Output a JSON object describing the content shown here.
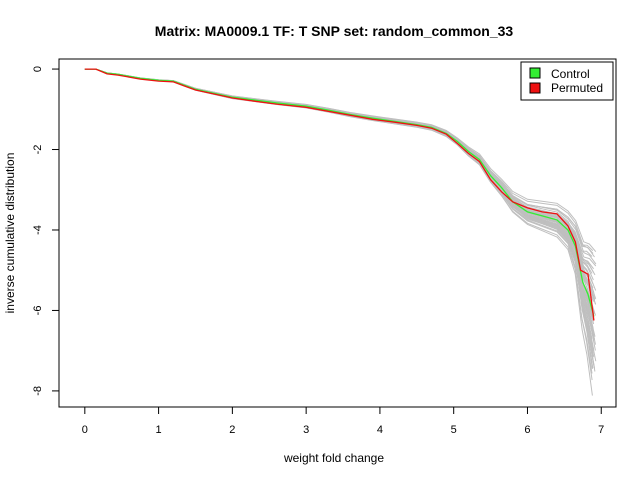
{
  "chart_data": {
    "type": "line",
    "title": "Matrix: MA0009.1 TF: T SNP set: random_common_33",
    "xlabel": "weight fold change",
    "ylabel": "inverse cumulative distribution",
    "xlim": [
      -0.35,
      7.2
    ],
    "ylim": [
      -8.4,
      0.25
    ],
    "x_ticks": [
      0,
      1,
      2,
      3,
      4,
      5,
      6,
      7
    ],
    "y_ticks": [
      0,
      -2,
      -4,
      -6,
      -8
    ],
    "grid": false,
    "legend_position": "top-right",
    "legend": [
      {
        "label": "Control",
        "color": "#33ee33"
      },
      {
        "label": "Permuted",
        "color": "#ee1111"
      }
    ],
    "background_color": "#bfbfbf",
    "series": [
      {
        "name": "Control",
        "color": "#33ee33",
        "x": [
          0.0,
          0.15,
          0.3,
          0.45,
          0.6,
          0.75,
          1.0,
          1.2,
          1.35,
          1.5,
          1.75,
          2.0,
          2.3,
          2.6,
          3.0,
          3.3,
          3.6,
          3.9,
          4.2,
          4.5,
          4.7,
          4.9,
          5.05,
          5.2,
          5.35,
          5.5,
          5.65,
          5.8,
          6.0,
          6.2,
          6.4,
          6.55,
          6.65,
          6.75,
          6.82,
          6.9
        ],
        "y": [
          0.0,
          0.0,
          -0.1,
          -0.13,
          -0.18,
          -0.23,
          -0.28,
          -0.3,
          -0.4,
          -0.5,
          -0.6,
          -0.7,
          -0.77,
          -0.84,
          -0.92,
          -1.02,
          -1.13,
          -1.22,
          -1.3,
          -1.38,
          -1.45,
          -1.6,
          -1.8,
          -2.05,
          -2.25,
          -2.65,
          -2.95,
          -3.3,
          -3.55,
          -3.65,
          -3.75,
          -4.0,
          -4.4,
          -5.3,
          -5.6,
          -6.15
        ]
      },
      {
        "name": "Permuted",
        "color": "#ee1111",
        "x": [
          0.0,
          0.15,
          0.3,
          0.45,
          0.6,
          0.75,
          1.0,
          1.2,
          1.35,
          1.5,
          1.75,
          2.0,
          2.3,
          2.6,
          3.0,
          3.3,
          3.6,
          3.9,
          4.2,
          4.5,
          4.7,
          4.9,
          5.05,
          5.2,
          5.35,
          5.5,
          5.65,
          5.8,
          6.0,
          6.2,
          6.4,
          6.55,
          6.65,
          6.72,
          6.82,
          6.9
        ],
        "y": [
          0.0,
          0.0,
          -0.12,
          -0.15,
          -0.2,
          -0.25,
          -0.3,
          -0.32,
          -0.42,
          -0.52,
          -0.62,
          -0.72,
          -0.8,
          -0.87,
          -0.95,
          -1.05,
          -1.15,
          -1.25,
          -1.32,
          -1.4,
          -1.47,
          -1.62,
          -1.85,
          -2.1,
          -2.3,
          -2.75,
          -3.05,
          -3.3,
          -3.45,
          -3.55,
          -3.6,
          -3.9,
          -4.3,
          -5.0,
          -5.1,
          -6.25
        ]
      }
    ]
  }
}
